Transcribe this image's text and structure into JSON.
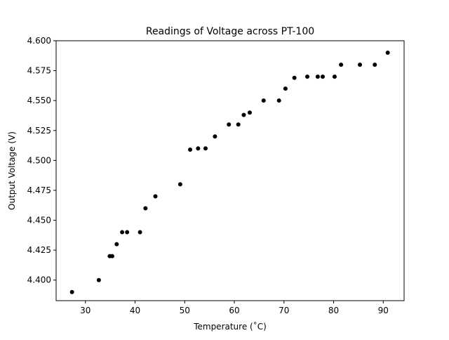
{
  "chart_data": {
    "type": "scatter",
    "title": "Readings of Voltage across PT-100",
    "xlabel": "Temperature (˚C)",
    "ylabel": "Output Voltage (V)",
    "xlim": [
      24.1,
      94.2
    ],
    "ylim": [
      4.3828,
      4.6
    ],
    "xticks": [
      30,
      40,
      50,
      60,
      70,
      80,
      90
    ],
    "xtick_labels": [
      "30",
      "40",
      "50",
      "60",
      "70",
      "80",
      "90"
    ],
    "yticks": [
      4.4,
      4.425,
      4.45,
      4.475,
      4.5,
      4.525,
      4.55,
      4.575,
      4.6
    ],
    "ytick_labels": [
      "4.400",
      "4.425",
      "4.450",
      "4.475",
      "4.500",
      "4.525",
      "4.550",
      "4.575",
      "4.600"
    ],
    "grid": false,
    "marker_color": "#000000",
    "points": [
      {
        "x": 27.3,
        "y": 4.39
      },
      {
        "x": 32.7,
        "y": 4.4
      },
      {
        "x": 34.9,
        "y": 4.42
      },
      {
        "x": 35.4,
        "y": 4.42
      },
      {
        "x": 36.3,
        "y": 4.43
      },
      {
        "x": 37.4,
        "y": 4.44
      },
      {
        "x": 38.4,
        "y": 4.44
      },
      {
        "x": 41.0,
        "y": 4.44
      },
      {
        "x": 42.1,
        "y": 4.46
      },
      {
        "x": 44.1,
        "y": 4.47
      },
      {
        "x": 49.1,
        "y": 4.48
      },
      {
        "x": 51.1,
        "y": 4.509
      },
      {
        "x": 52.7,
        "y": 4.51
      },
      {
        "x": 54.2,
        "y": 4.51
      },
      {
        "x": 56.1,
        "y": 4.52
      },
      {
        "x": 58.9,
        "y": 4.53
      },
      {
        "x": 60.8,
        "y": 4.53
      },
      {
        "x": 61.9,
        "y": 4.538
      },
      {
        "x": 63.1,
        "y": 4.54
      },
      {
        "x": 65.9,
        "y": 4.55
      },
      {
        "x": 69.0,
        "y": 4.55
      },
      {
        "x": 70.3,
        "y": 4.56
      },
      {
        "x": 72.1,
        "y": 4.569
      },
      {
        "x": 74.7,
        "y": 4.57
      },
      {
        "x": 76.8,
        "y": 4.57
      },
      {
        "x": 77.8,
        "y": 4.57
      },
      {
        "x": 80.2,
        "y": 4.57
      },
      {
        "x": 81.5,
        "y": 4.58
      },
      {
        "x": 85.3,
        "y": 4.58
      },
      {
        "x": 88.3,
        "y": 4.58
      },
      {
        "x": 90.9,
        "y": 4.59
      }
    ]
  }
}
